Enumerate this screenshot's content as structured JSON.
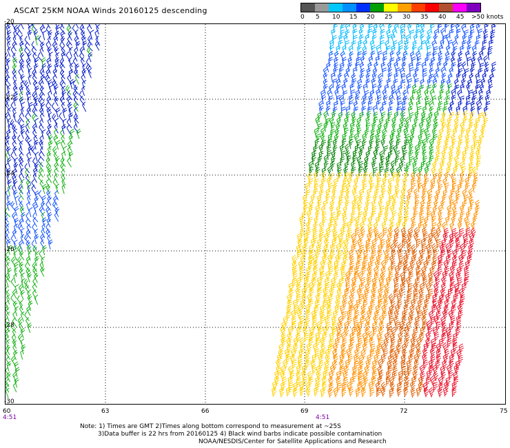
{
  "title": "ASCAT 25KM NOAA Winds 20160125 descending",
  "scale": {
    "colors": [
      "#555555",
      "#999999",
      "#00c8ff",
      "#0090ff",
      "#0030ff",
      "#00a000",
      "#ffff00",
      "#ffa000",
      "#ff4000",
      "#ff0000",
      "#b05030",
      "#ff00ff",
      "#8000c0"
    ],
    "labels": [
      "0",
      "5",
      "10",
      "15",
      "20",
      "25",
      "30",
      "35",
      "40",
      "45",
      ">50 knots"
    ]
  },
  "map": {
    "lat_labels": [
      "-20",
      "-22",
      "-24",
      "-26",
      "-28",
      "-30"
    ],
    "lon_labels": [
      "60",
      "63",
      "66",
      "69",
      "72",
      "75"
    ],
    "time_labels": [
      "4:51",
      "4:51"
    ],
    "barb_colors": {
      "dark_blue": "#0018c8",
      "blue": "#1050ff",
      "cyan": "#00b8ff",
      "green": "#10b010",
      "dark_green": "#008000",
      "yellow": "#ffd000",
      "orange": "#ff9000",
      "dark_orange": "#e06000",
      "red": "#e8102a"
    }
  },
  "notes": {
    "line1": "Note: 1) Times are GMT 2)Times along bottom correspond to measurement at ~25S",
    "line2": "3)Data buffer is 22 hrs from 20160125 4) Black wind barbs indicate possible contamination",
    "line3": "NOAA/NESDIS/Center for Satellite Applications and Research"
  }
}
